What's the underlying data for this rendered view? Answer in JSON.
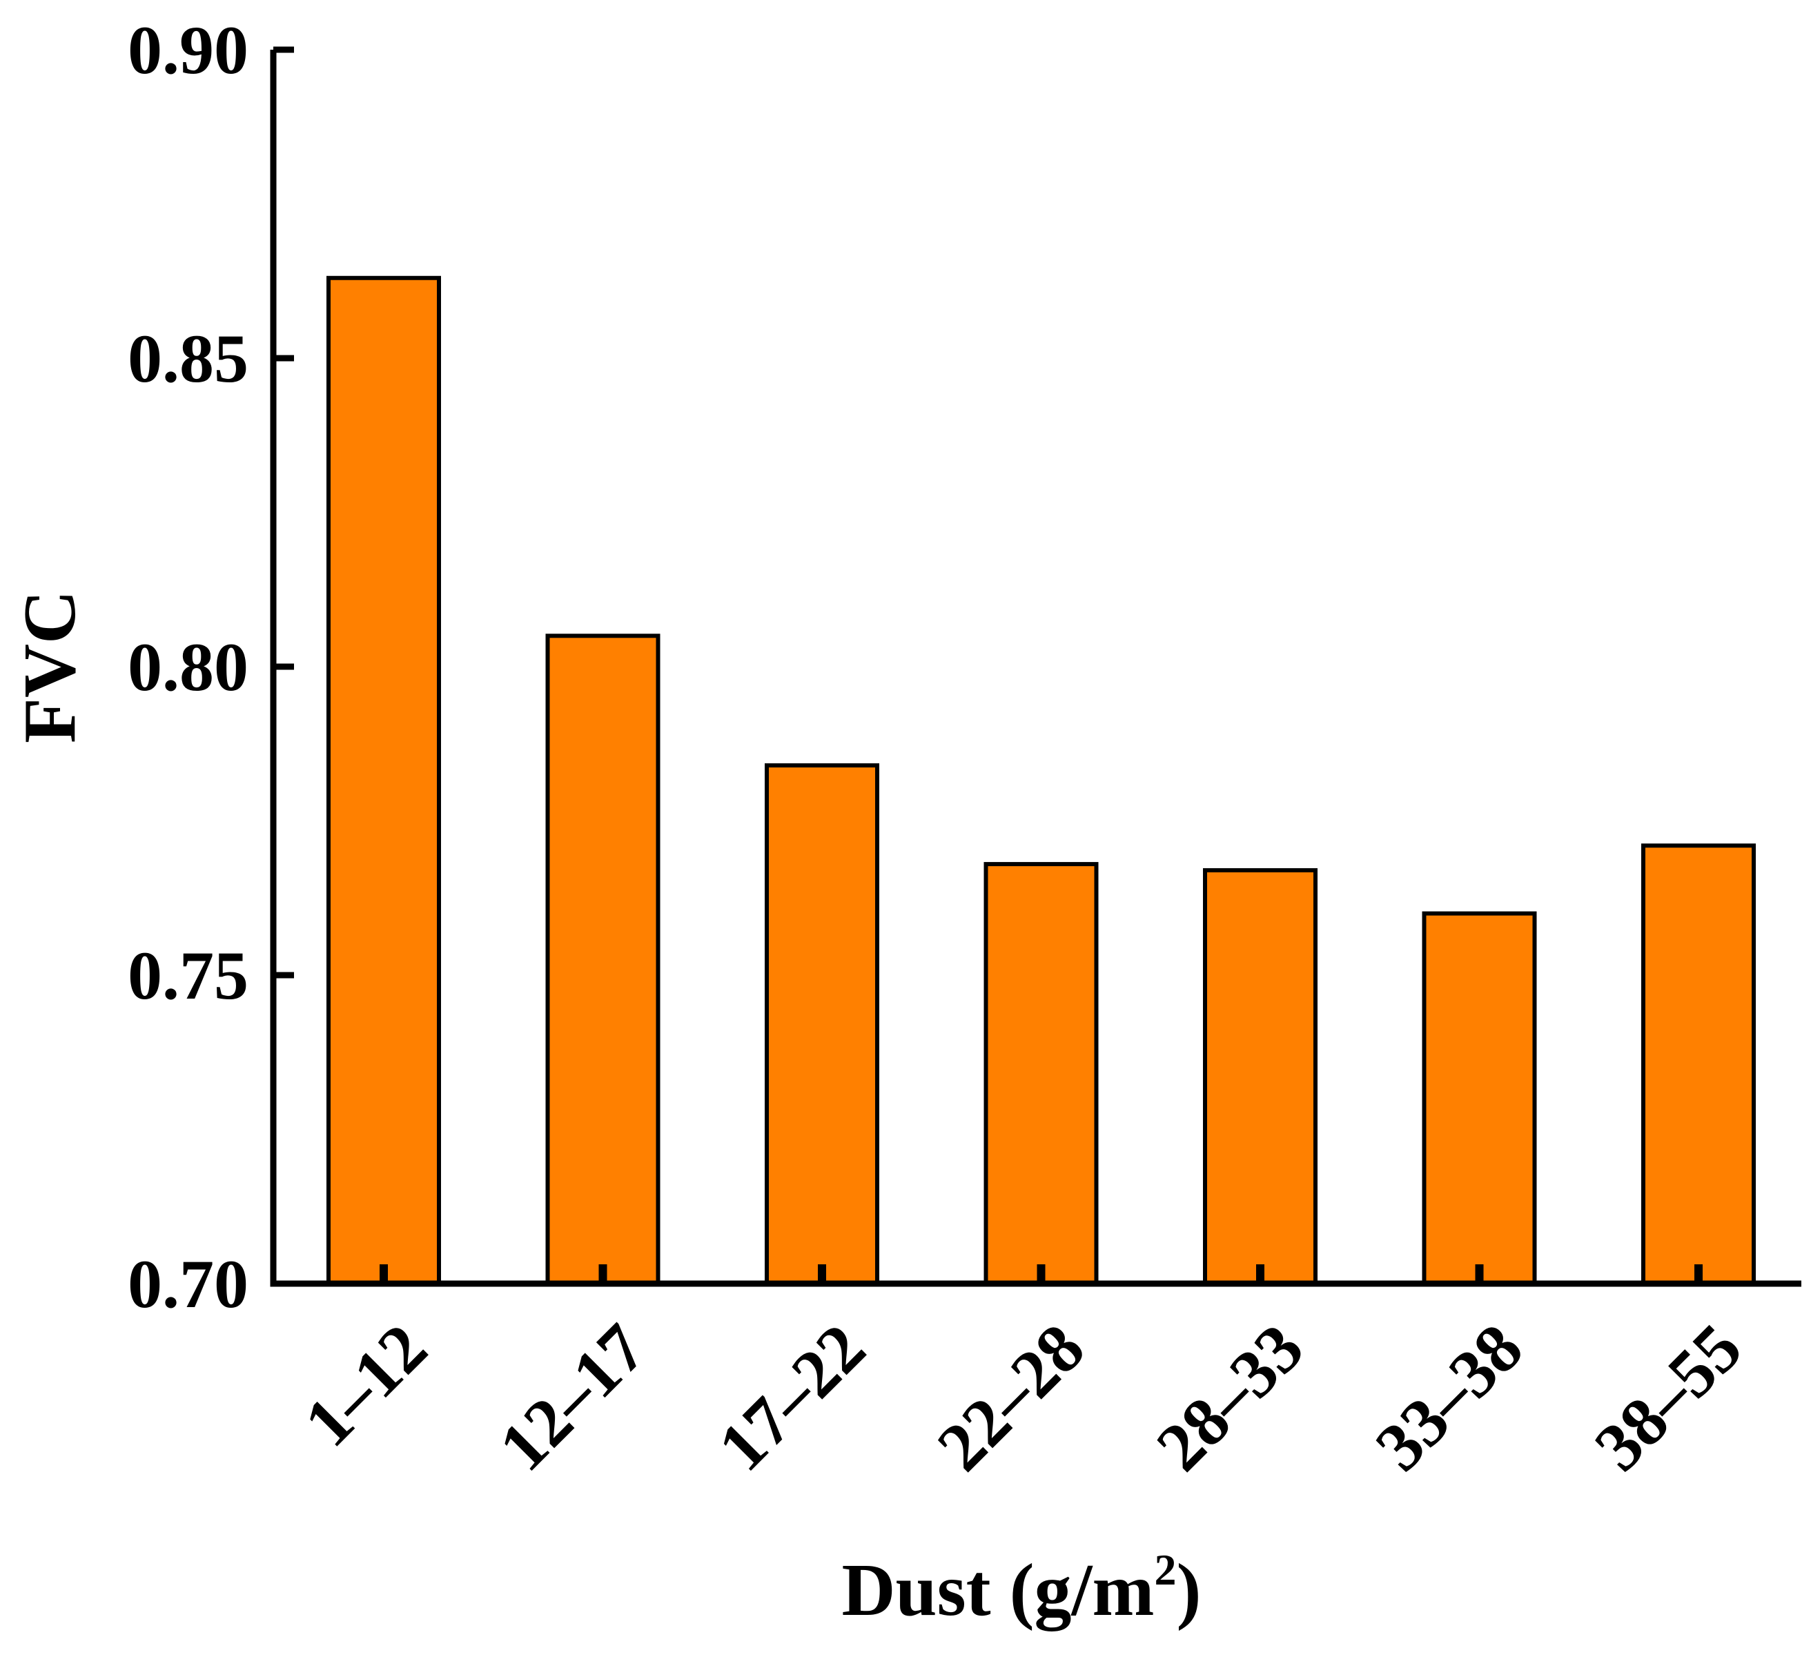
{
  "chart_data": {
    "type": "bar",
    "title": "",
    "xlabel": "Dust (g/m",
    "xlabel_superscript": "2",
    "xlabel_close": ")",
    "ylabel": "FVC",
    "categories": [
      "1–12",
      "12–17",
      "17–22",
      "22–28",
      "28–33",
      "33–38",
      "38–55"
    ],
    "values": [
      0.863,
      0.805,
      0.784,
      0.768,
      0.767,
      0.76,
      0.771
    ],
    "ylim": [
      0.7,
      0.9
    ],
    "yticks": [
      0.7,
      0.75,
      0.8,
      0.85,
      0.9
    ],
    "ytick_labels": [
      "0.70",
      "0.75",
      "0.80",
      "0.85",
      "0.90"
    ],
    "grid": false,
    "legend": "none",
    "bar_color": "#FF8000",
    "edge_color": "#000000"
  }
}
